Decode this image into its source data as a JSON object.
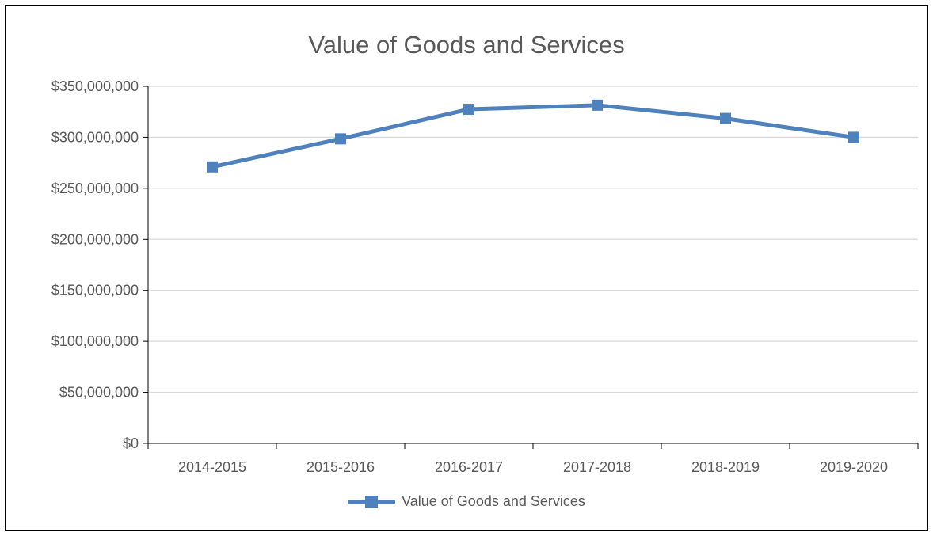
{
  "chart_data": {
    "type": "line",
    "title": "Value of Goods and Services",
    "categories": [
      "2014-2015",
      "2015-2016",
      "2016-2017",
      "2017-2018",
      "2018-2019",
      "2019-2020"
    ],
    "series": [
      {
        "name": "Value of Goods and Services",
        "values": [
          271000000,
          298500000,
          327500000,
          331500000,
          318500000,
          300000000
        ],
        "color": "#4f81bd",
        "marker": "square"
      }
    ],
    "y_ticks": [
      "$0",
      "$50,000,000",
      "$100,000,000",
      "$150,000,000",
      "$200,000,000",
      "$250,000,000",
      "$300,000,000",
      "$350,000,000"
    ],
    "ylim": [
      0,
      350000000
    ],
    "grid": true,
    "legend_position": "bottom"
  }
}
